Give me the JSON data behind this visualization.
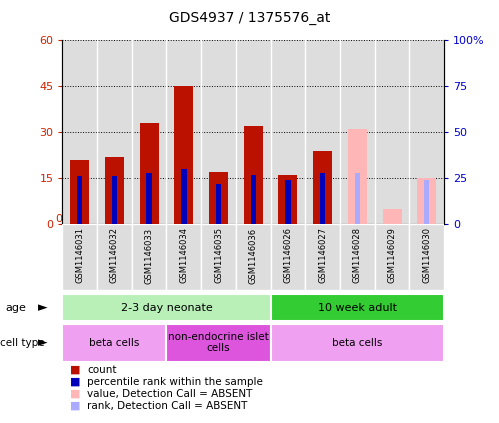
{
  "title": "GDS4937 / 1375576_at",
  "samples": [
    "GSM1146031",
    "GSM1146032",
    "GSM1146033",
    "GSM1146034",
    "GSM1146035",
    "GSM1146036",
    "GSM1146026",
    "GSM1146027",
    "GSM1146028",
    "GSM1146029",
    "GSM1146030"
  ],
  "count_values": [
    21,
    22,
    33,
    45,
    17,
    32,
    16,
    24,
    null,
    null,
    null
  ],
  "count_absent": [
    null,
    null,
    null,
    null,
    null,
    null,
    null,
    null,
    31,
    5,
    15
  ],
  "rank_values": [
    26,
    26,
    28,
    30,
    22,
    27,
    24,
    28,
    null,
    null,
    null
  ],
  "rank_absent": [
    null,
    null,
    null,
    null,
    null,
    null,
    null,
    null,
    28,
    null,
    24
  ],
  "ylim_left": [
    0,
    60
  ],
  "ylim_right": [
    0,
    100
  ],
  "yticks_left": [
    0,
    15,
    30,
    45,
    60
  ],
  "yticks_right": [
    0,
    25,
    50,
    75,
    100
  ],
  "ytick_labels_left": [
    "0",
    "15",
    "30",
    "45",
    "60"
  ],
  "ytick_labels_right": [
    "0",
    "25",
    "50",
    "75",
    "100%"
  ],
  "age_groups": [
    {
      "label": "2-3 day neonate",
      "start": 0,
      "end": 6,
      "color": "#b8f0b8"
    },
    {
      "label": "10 week adult",
      "start": 6,
      "end": 11,
      "color": "#33cc33"
    }
  ],
  "cell_type_groups": [
    {
      "label": "beta cells",
      "start": 0,
      "end": 3,
      "color": "#f0a0f0"
    },
    {
      "label": "non-endocrine islet\ncells",
      "start": 3,
      "end": 6,
      "color": "#dd55dd"
    },
    {
      "label": "beta cells",
      "start": 6,
      "end": 11,
      "color": "#f0a0f0"
    }
  ],
  "bar_width": 0.55,
  "count_color": "#bb1100",
  "rank_color": "#0000bb",
  "count_absent_color": "#ffb6b6",
  "rank_absent_color": "#aaaaff",
  "bg_color": "#ffffff",
  "plot_bg_color": "#ffffff",
  "col_bg_color": "#dddddd",
  "legend_items": [
    {
      "label": "count",
      "color": "#bb1100"
    },
    {
      "label": "percentile rank within the sample",
      "color": "#0000bb"
    },
    {
      "label": "value, Detection Call = ABSENT",
      "color": "#ffb6b6"
    },
    {
      "label": "rank, Detection Call = ABSENT",
      "color": "#aaaaff"
    }
  ]
}
